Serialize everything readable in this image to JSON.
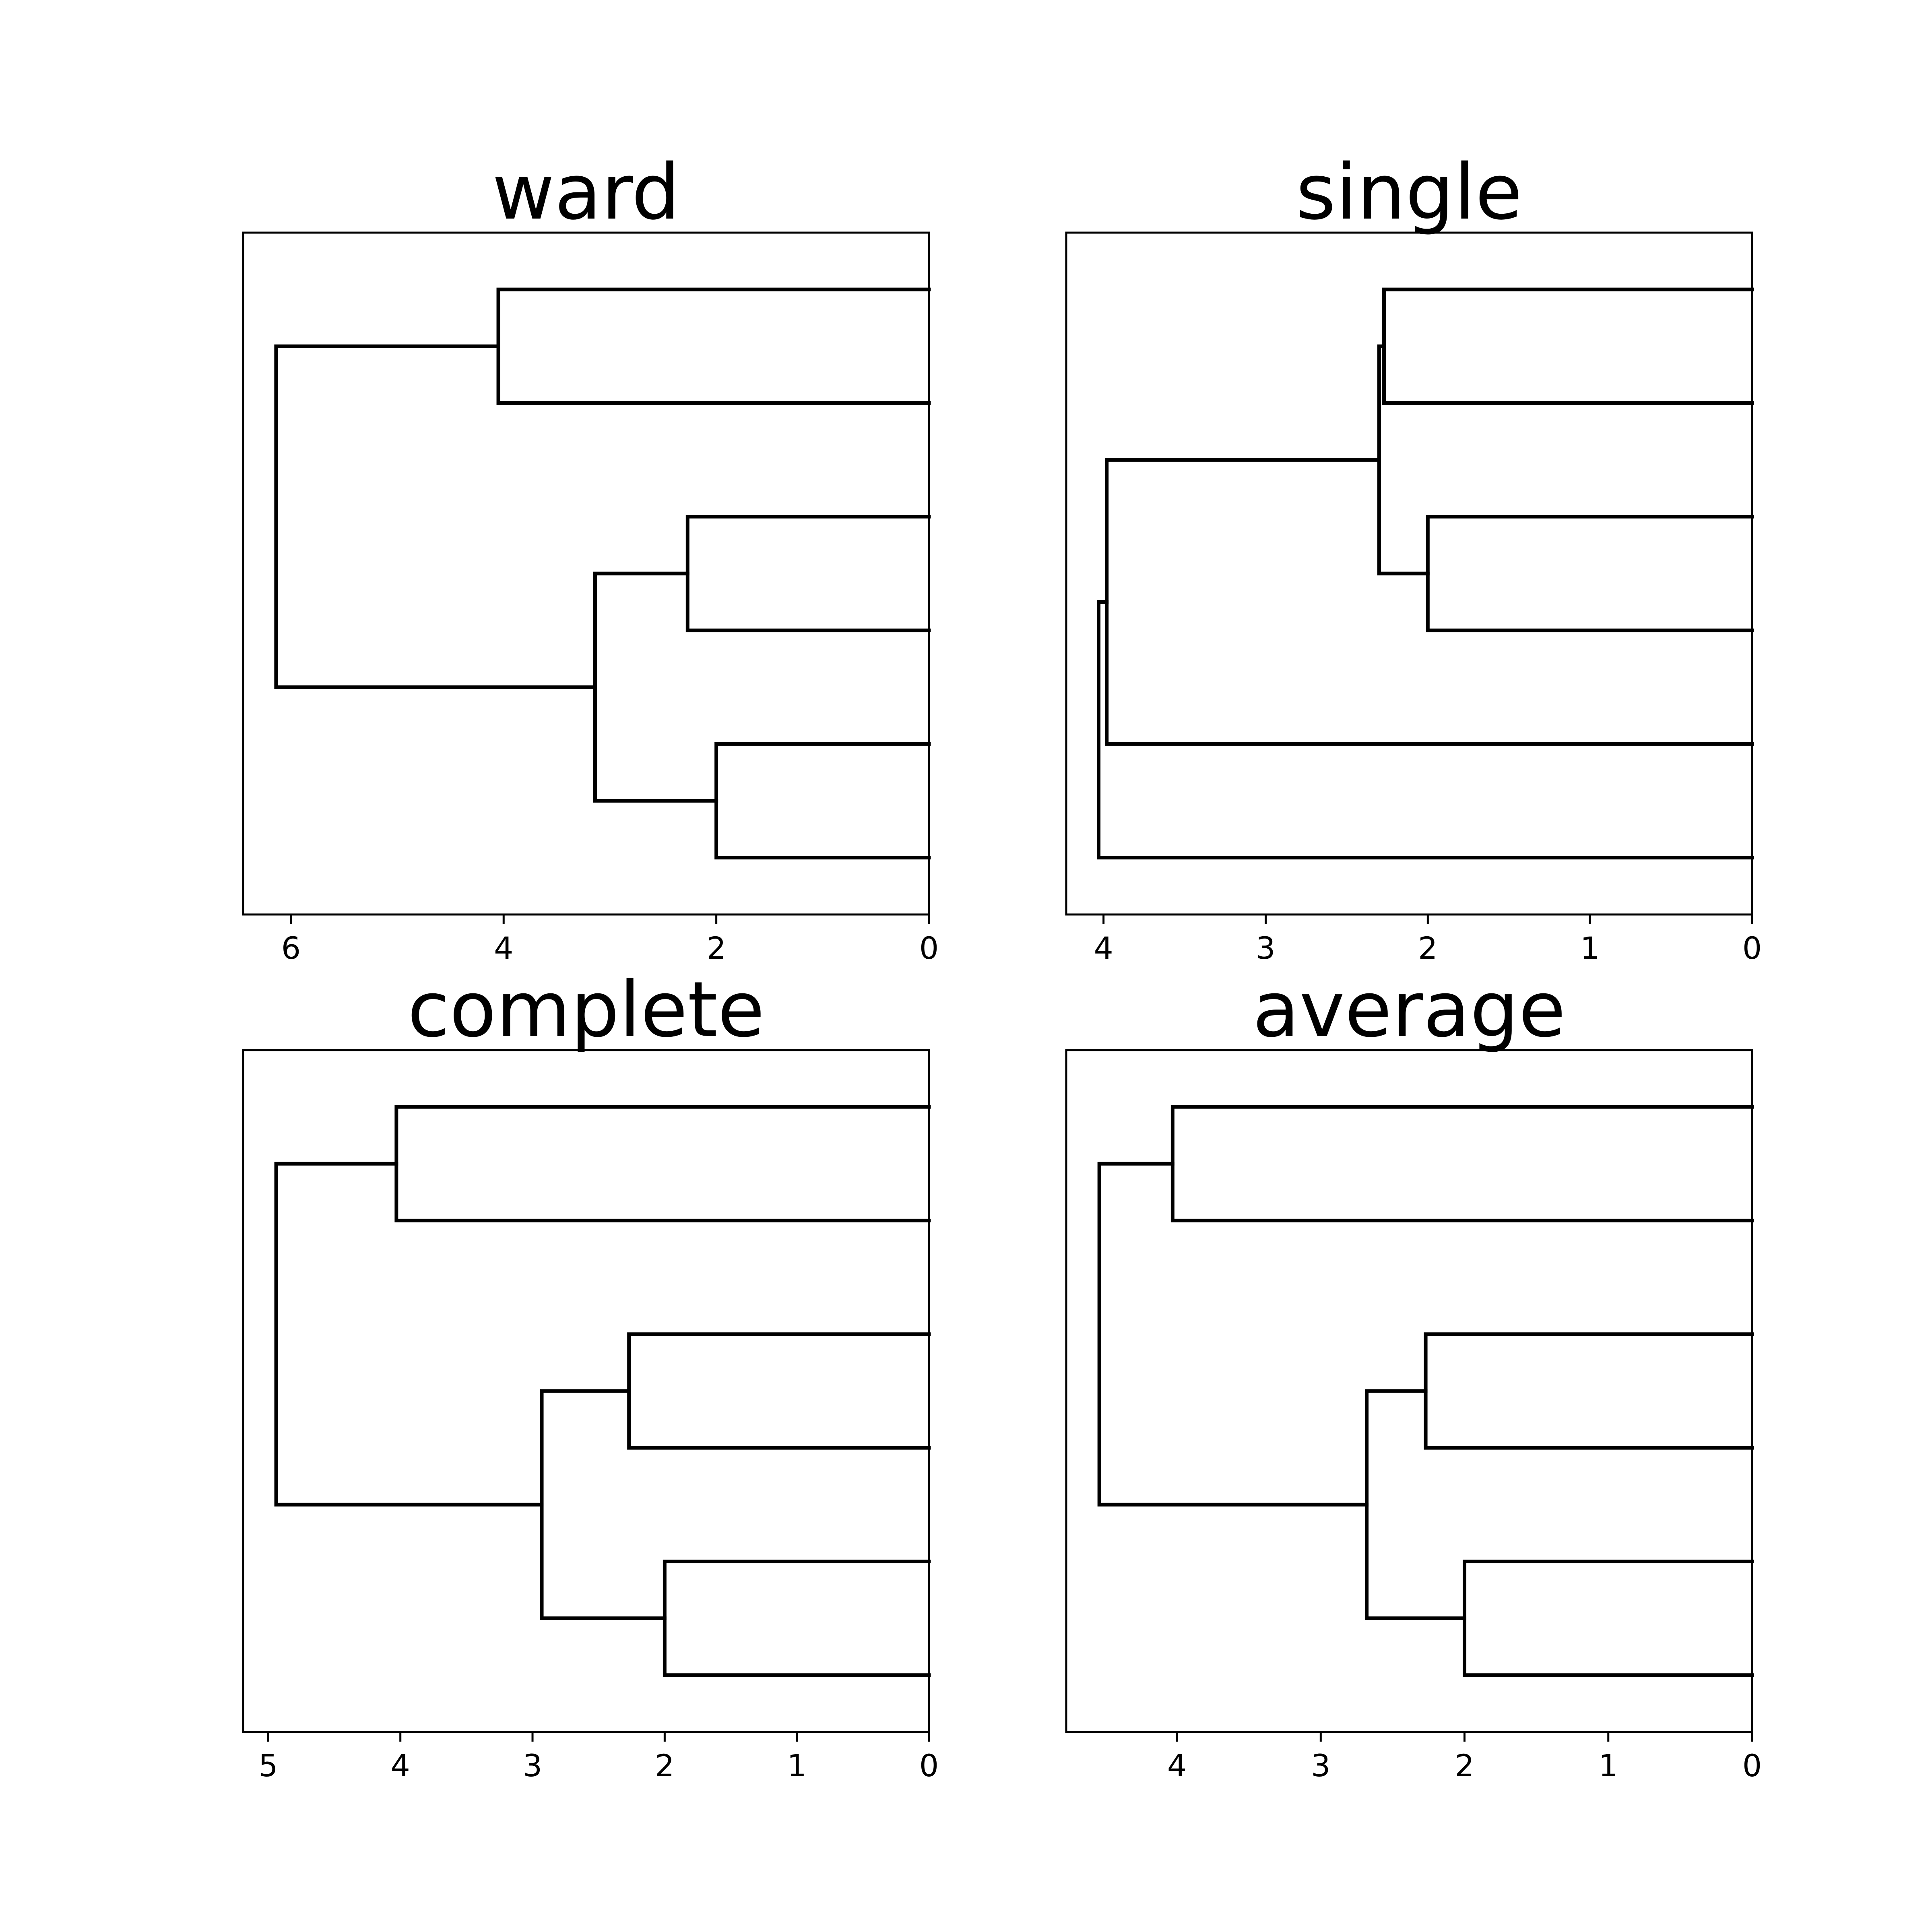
{
  "chart_data": [
    {
      "type": "dendrogram",
      "title": "ward",
      "orientation": "left",
      "xlim": [
        6.45,
        0
      ],
      "ticks": [
        6,
        4,
        2,
        0
      ],
      "leaves": 6,
      "links": [
        {
          "left": 0,
          "right": 1,
          "height": 4.05
        },
        {
          "left": 2,
          "right": 3,
          "height": 2.27
        },
        {
          "left": 4,
          "right": 5,
          "height": 2.0
        },
        {
          "left": "c2",
          "right": "c3",
          "height": 3.14
        },
        {
          "left": "c1",
          "right": "c4",
          "height": 6.14
        }
      ]
    },
    {
      "type": "dendrogram",
      "title": "single",
      "orientation": "left",
      "xlim": [
        4.23,
        0
      ],
      "ticks": [
        4,
        3,
        2,
        1,
        0
      ],
      "leaves": 6,
      "links": [
        {
          "left": 0,
          "right": 1,
          "height": 2.27
        },
        {
          "left": 2,
          "right": 3,
          "height": 2.0
        },
        {
          "left": "c1",
          "right": "c2",
          "height": 2.3
        },
        {
          "left": "c3",
          "right": 4,
          "height": 3.98
        },
        {
          "left": "c4",
          "right": 5,
          "height": 4.03
        }
      ]
    },
    {
      "type": "dendrogram",
      "title": "complete",
      "orientation": "left",
      "xlim": [
        5.19,
        0
      ],
      "ticks": [
        5,
        4,
        3,
        2,
        1,
        0
      ],
      "leaves": 6,
      "links": [
        {
          "left": 0,
          "right": 1,
          "height": 4.03
        },
        {
          "left": 2,
          "right": 3,
          "height": 2.27
        },
        {
          "left": 4,
          "right": 5,
          "height": 2.0
        },
        {
          "left": "c2",
          "right": "c3",
          "height": 2.93
        },
        {
          "left": "c1",
          "right": "c4",
          "height": 4.94
        }
      ]
    },
    {
      "type": "dendrogram",
      "title": "average",
      "orientation": "left",
      "xlim": [
        4.77,
        0
      ],
      "ticks": [
        4,
        3,
        2,
        1,
        0
      ],
      "leaves": 6,
      "links": [
        {
          "left": 0,
          "right": 1,
          "height": 4.03
        },
        {
          "left": 2,
          "right": 3,
          "height": 2.27
        },
        {
          "left": 4,
          "right": 5,
          "height": 2.0
        },
        {
          "left": "c2",
          "right": "c3",
          "height": 2.68
        },
        {
          "left": "c1",
          "right": "c4",
          "height": 4.54
        }
      ]
    }
  ]
}
